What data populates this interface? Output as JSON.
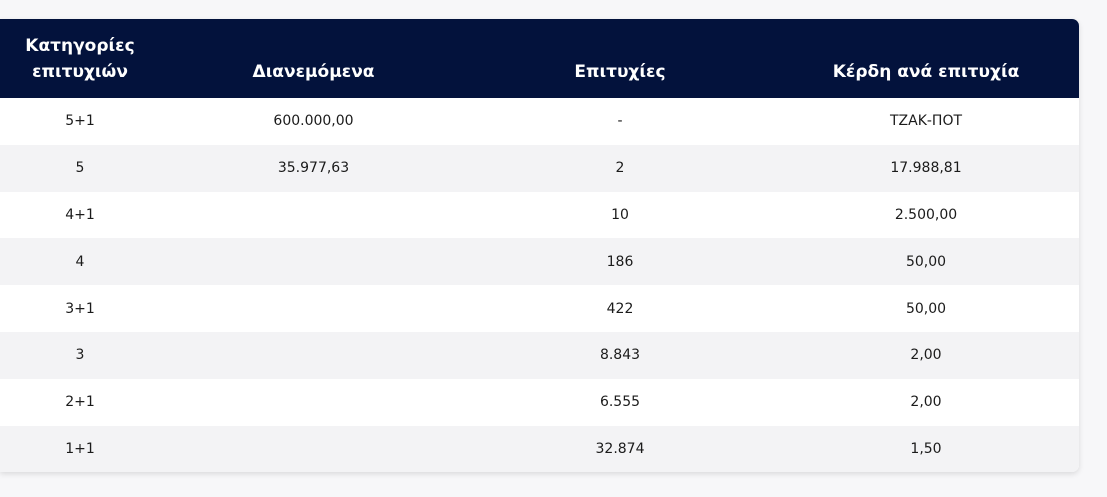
{
  "table": {
    "headers": {
      "category_line1": "Κατηγορίες",
      "category_line2": "επιτυχιών",
      "distributed": "Διανεμόμενα",
      "winners": "Επιτυχίες",
      "prize_per_winner": "Κέρδη ανά επιτυχία"
    },
    "rows": [
      {
        "category": "5+1",
        "distributed": "600.000,00",
        "winners": "-",
        "prize": "ΤΖΑΚ-ΠΟΤ"
      },
      {
        "category": "5",
        "distributed": "35.977,63",
        "winners": "2",
        "prize": "17.988,81"
      },
      {
        "category": "4+1",
        "distributed": "",
        "winners": "10",
        "prize": "2.500,00"
      },
      {
        "category": "4",
        "distributed": "",
        "winners": "186",
        "prize": "50,00"
      },
      {
        "category": "3+1",
        "distributed": "",
        "winners": "422",
        "prize": "50,00"
      },
      {
        "category": "3",
        "distributed": "",
        "winners": "8.843",
        "prize": "2,00"
      },
      {
        "category": "2+1",
        "distributed": "",
        "winners": "6.555",
        "prize": "2,00"
      },
      {
        "category": "1+1",
        "distributed": "",
        "winners": "32.874",
        "prize": "1,50"
      }
    ]
  },
  "colors": {
    "header_bg": "#03123c",
    "header_text": "#ffffff",
    "row_alt_bg": "#f3f3f5"
  }
}
